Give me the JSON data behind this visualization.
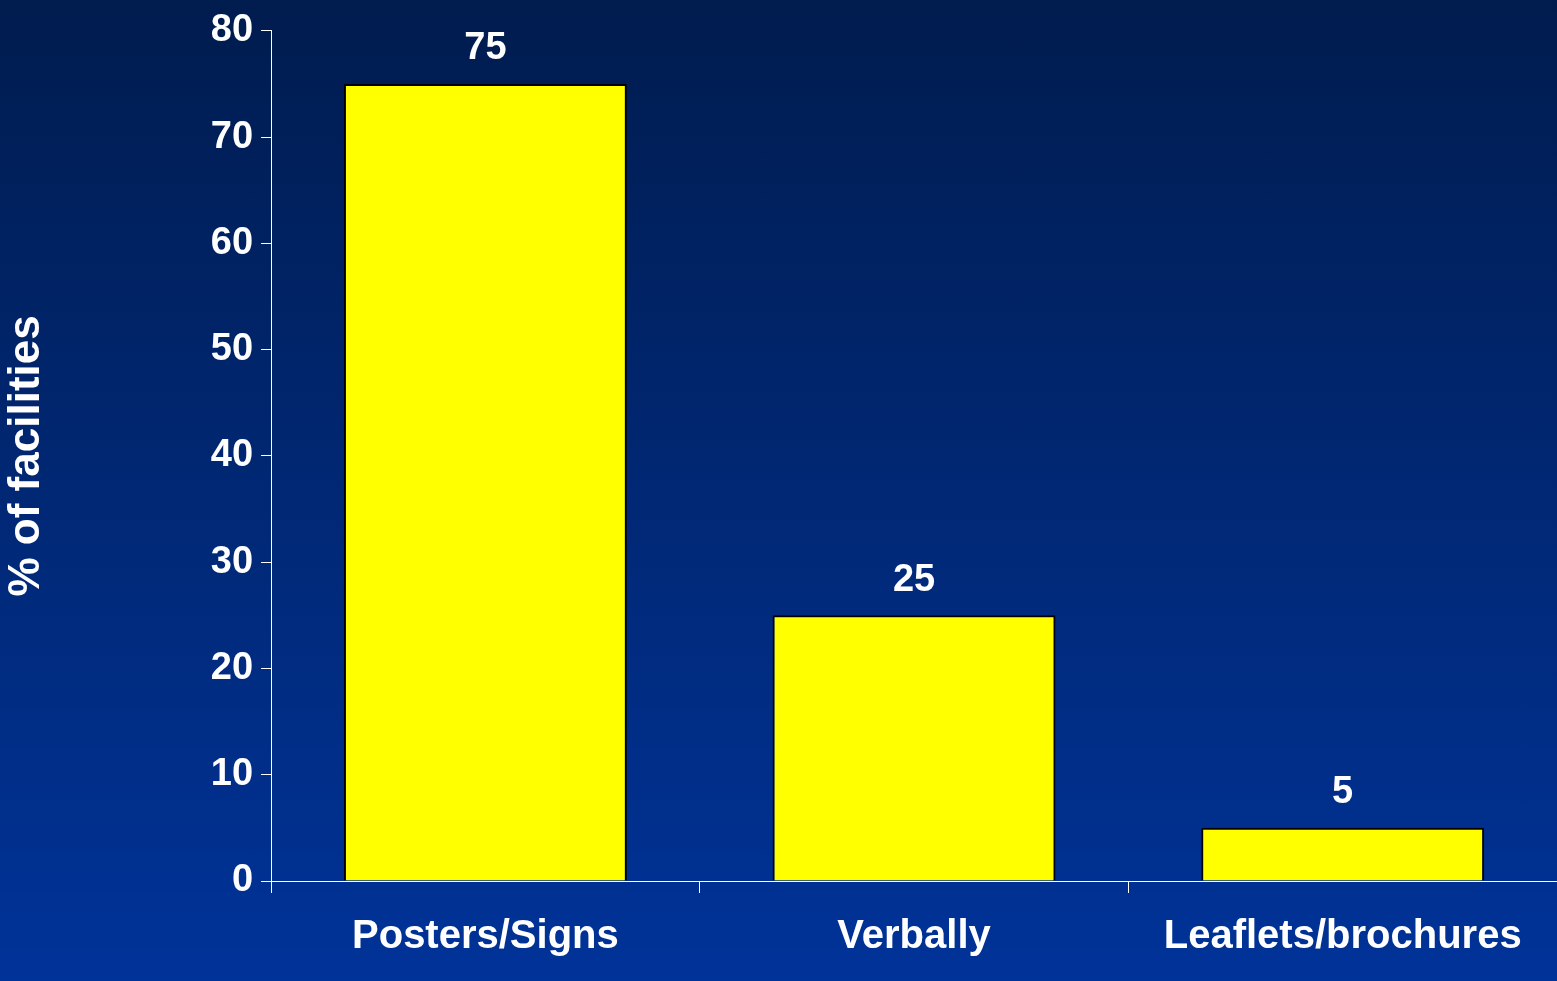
{
  "chart_data": {
    "type": "bar",
    "ylabel": "% of facilities",
    "categories": [
      "Posters/Signs",
      "Verbally",
      "Leaflets/brochures"
    ],
    "values": [
      75,
      25,
      5
    ],
    "color": "#ffff00",
    "ylim": [
      0,
      80
    ],
    "yticks": [
      0,
      10,
      20,
      30,
      40,
      50,
      60,
      70,
      80
    ],
    "grid": false,
    "legend": false,
    "data_labels": true
  }
}
